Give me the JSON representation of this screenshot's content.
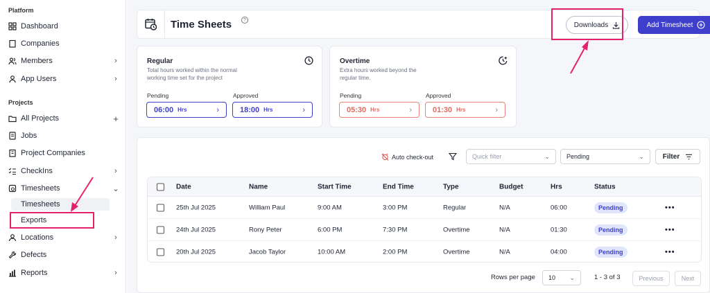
{
  "sidebar": {
    "platform_label": "Platform",
    "platform_items": [
      {
        "label": "Dashboard"
      },
      {
        "label": "Companies"
      },
      {
        "label": "Members"
      },
      {
        "label": "App Users"
      }
    ],
    "projects_label": "Projects",
    "project_items": [
      {
        "label": "All Projects"
      },
      {
        "label": "Jobs"
      },
      {
        "label": "Project Companies"
      },
      {
        "label": "CheckIns"
      },
      {
        "label": "Timesheets"
      },
      {
        "label": "Locations"
      },
      {
        "label": "Defects"
      },
      {
        "label": "Reports"
      }
    ],
    "sub_items": [
      {
        "label": "Timesheets"
      },
      {
        "label": "Exports"
      }
    ]
  },
  "header": {
    "title": "Time Sheets",
    "help_glyph": "?",
    "downloads_label": "Downloads",
    "add_label": "Add Timesheet"
  },
  "cards": {
    "regular": {
      "title": "Regular",
      "desc": "Total hours worked within the normal working time set for the project",
      "pending_label": "Pending",
      "pending_value": "06:00",
      "approved_label": "Approved",
      "approved_value": "18:00",
      "unit": "Hrs"
    },
    "overtime": {
      "title": "Overtime",
      "desc": "Extra hours worked beyond the regular time.",
      "pending_label": "Pending",
      "pending_value": "05:30",
      "approved_label": "Approved",
      "approved_value": "01:30",
      "unit": "Hrs"
    }
  },
  "toolbar": {
    "auto_checkout": "Auto check-out",
    "quick_filter_placeholder": "Quick filter",
    "status_value": "Pending",
    "filter_label": "Filter"
  },
  "table": {
    "columns": [
      "Date",
      "Name",
      "Start Time",
      "End Time",
      "Type",
      "Budget",
      "Hrs",
      "Status"
    ],
    "rows": [
      {
        "date": "25th Jul 2025",
        "name": "William Paul",
        "start": "9:00 AM",
        "end": "3:00 PM",
        "type": "Regular",
        "budget": "N/A",
        "hrs": "06:00",
        "status": "Pending"
      },
      {
        "date": "24th Jul 2025",
        "name": "Rony Peter",
        "start": "6:00 PM",
        "end": "7:30 PM",
        "type": "Overtime",
        "budget": "N/A",
        "hrs": "01:30",
        "status": "Pending"
      },
      {
        "date": "20th Jul 2025",
        "name": "Jacob Taylor",
        "start": "10:00 AM",
        "end": "2:00 PM",
        "type": "Overtime",
        "budget": "N/A",
        "hrs": "04:00",
        "status": "Pending"
      }
    ],
    "more_glyph": "•••"
  },
  "pagination": {
    "rows_per_page_label": "Rows per page",
    "rows_per_page_value": "10",
    "range_text": "1 - 3 of 3",
    "previous_label": "Previous",
    "next_label": "Next"
  },
  "colors": {
    "accent": "#3e3fca",
    "annotation": "#e4226b",
    "overtime": "#e06a60"
  }
}
